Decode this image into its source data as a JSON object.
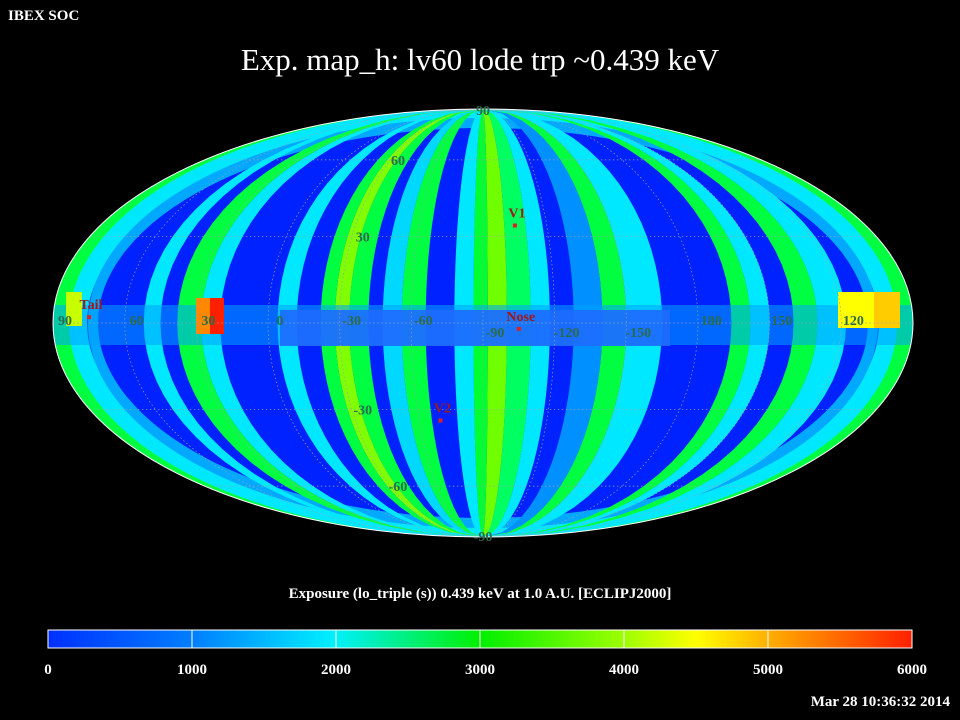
{
  "header": {
    "label": "IBEX SOC"
  },
  "title": "Exp.   map_h: lv60 lode trp ~0.439 keV",
  "caption": "Exposure (lo_triple (s))  0.439 keV at 1.0 A.U. [ECLIPJ2000]",
  "timestamp": "Mar 28 10:36:32 2014",
  "map": {
    "projection": "mollweide",
    "lat_labels_upper": [
      "90",
      "60",
      "30"
    ],
    "lat_labels_lower": [
      "-30",
      "-60",
      "-90"
    ],
    "lon_labels": [
      "60",
      "30",
      "0",
      "-30",
      "-60",
      "-90",
      "-120",
      "-150",
      "180",
      "150",
      "120",
      "90"
    ],
    "markers": [
      {
        "name": "V1",
        "lon": -105,
        "lat": 34
      },
      {
        "name": "Nose",
        "lon": -105,
        "lat": -2
      },
      {
        "name": "V2",
        "lon": -70,
        "lat": -34
      },
      {
        "name": "Tail",
        "lon": 75,
        "lat": 2
      }
    ],
    "marker_color": "#e02020"
  },
  "colorbar": {
    "min": 0,
    "max": 6000,
    "ticks": [
      "0",
      "1000",
      "2000",
      "3000",
      "4000",
      "5000",
      "6000"
    ]
  }
}
